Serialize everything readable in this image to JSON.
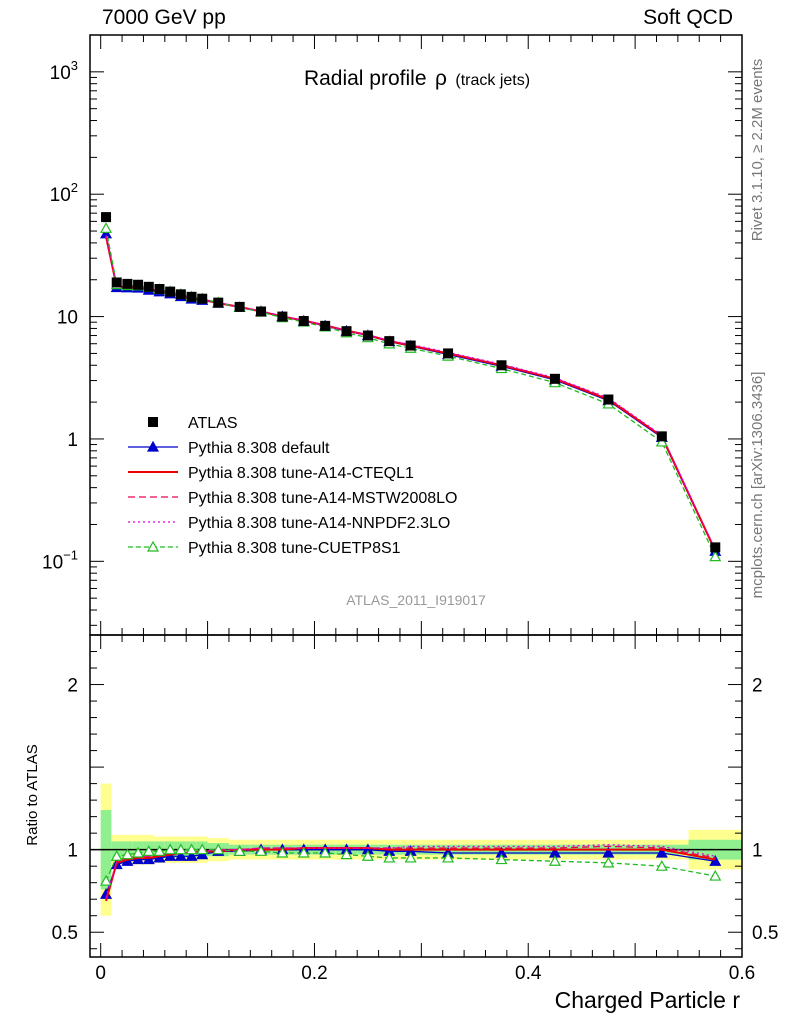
{
  "header": {
    "left": "7000 GeV pp",
    "right": "Soft QCD"
  },
  "side_labels": {
    "rivet": "Rivet 3.1.10, ≥ 2.2M events",
    "mcplots": "mcplots.cern.ch [arXiv:1306.3436]"
  },
  "colors": {
    "atlas": "#000000",
    "default": "#0000cc",
    "cteql1": "#ee0000",
    "mstw": "#ee0055",
    "nnpdf": "#dd00dd",
    "cuetp8s1": "#22bb22",
    "band_inner": "#90f090",
    "band_outer": "#ffff90"
  },
  "chart_data": {
    "type": "line",
    "title": "Radial profile",
    "title_symbol": "ρ",
    "title_suffix": "(track jets)",
    "analysis_label": "ATLAS_2011_I919017",
    "xlabel": "Charged Particle r",
    "ylabel_ratio": "Ratio to ATLAS",
    "xlim": [
      -0.01,
      0.6
    ],
    "ylim_main": [
      0.025,
      2000
    ],
    "ylog_main": true,
    "ylim_ratio": [
      0.35,
      2.3
    ],
    "x_ticks": [
      {
        "v": 0,
        "label": "0"
      },
      {
        "v": 0.2,
        "label": "0.2"
      },
      {
        "v": 0.4,
        "label": "0.4"
      },
      {
        "v": 0.6,
        "label": "0.6"
      }
    ],
    "main_ticks": [
      {
        "v": 1000,
        "base": "10",
        "exp": "3"
      },
      {
        "v": 100,
        "base": "10",
        "exp": "2"
      },
      {
        "v": 10,
        "base": "10",
        "exp": ""
      },
      {
        "v": 1,
        "base": "1",
        "exp": ""
      },
      {
        "v": 0.1,
        "base": "10",
        "exp": "−1"
      }
    ],
    "ratio_ticks": [
      {
        "v": 0.5,
        "label": "0.5"
      },
      {
        "v": 1,
        "label": "1"
      },
      {
        "v": 2,
        "label": "2"
      }
    ],
    "legend_position": "lower-left",
    "x": [
      0.005,
      0.015,
      0.025,
      0.035,
      0.045,
      0.055,
      0.065,
      0.075,
      0.085,
      0.095,
      0.11,
      0.13,
      0.15,
      0.17,
      0.19,
      0.21,
      0.23,
      0.25,
      0.27,
      0.29,
      0.325,
      0.375,
      0.425,
      0.475,
      0.525,
      0.575
    ],
    "band_edges": [
      0,
      0.01,
      0.02,
      0.03,
      0.04,
      0.05,
      0.06,
      0.07,
      0.08,
      0.09,
      0.1,
      0.12,
      0.14,
      0.16,
      0.18,
      0.2,
      0.22,
      0.24,
      0.26,
      0.28,
      0.3,
      0.35,
      0.4,
      0.45,
      0.5,
      0.55,
      0.6
    ],
    "band_inner": [
      0.24,
      0.05,
      0.05,
      0.05,
      0.05,
      0.05,
      0.05,
      0.05,
      0.05,
      0.05,
      0.04,
      0.03,
      0.03,
      0.03,
      0.03,
      0.03,
      0.03,
      0.03,
      0.03,
      0.03,
      0.03,
      0.03,
      0.03,
      0.03,
      0.03,
      0.06
    ],
    "band_outer": [
      0.4,
      0.09,
      0.09,
      0.09,
      0.09,
      0.08,
      0.08,
      0.08,
      0.08,
      0.08,
      0.07,
      0.06,
      0.06,
      0.06,
      0.06,
      0.06,
      0.06,
      0.06,
      0.06,
      0.06,
      0.06,
      0.06,
      0.06,
      0.06,
      0.06,
      0.12
    ],
    "atlas": [
      65,
      19,
      18.5,
      18.2,
      17.5,
      16.8,
      16,
      15.2,
      14.5,
      14,
      13,
      12,
      11,
      10,
      9.2,
      8.4,
      7.6,
      7,
      6.3,
      5.8,
      5,
      4,
      3.1,
      2.1,
      1.05,
      0.13
    ],
    "series": [
      {
        "name": "Pythia 8.308 default",
        "key": "default",
        "marker": "triangle-filled",
        "dash": "",
        "ratio": [
          0.73,
          0.91,
          0.93,
          0.94,
          0.94,
          0.95,
          0.96,
          0.96,
          0.96,
          0.97,
          0.99,
          0.99,
          1.0,
          1.0,
          1.0,
          1.0,
          1.0,
          1.0,
          0.99,
          0.99,
          0.98,
          0.98,
          0.98,
          0.98,
          0.98,
          0.93
        ]
      },
      {
        "name": "Pythia 8.308 tune-A14-CTEQL1",
        "key": "cteql1",
        "marker": "none",
        "dash": "",
        "ratio": [
          0.69,
          0.92,
          0.94,
          0.95,
          0.95,
          0.96,
          0.97,
          0.98,
          0.98,
          0.99,
          0.99,
          1.0,
          1.0,
          1.0,
          1.01,
          1.01,
          1.01,
          1.01,
          1.0,
          1.0,
          1.0,
          1.0,
          1.0,
          1.0,
          1.0,
          0.94
        ]
      },
      {
        "name": "Pythia 8.308 tune-A14-MSTW2008LO",
        "key": "mstw",
        "marker": "none",
        "dash": "7,4",
        "ratio": [
          0.7,
          0.93,
          0.95,
          0.96,
          0.96,
          0.97,
          0.98,
          0.98,
          0.99,
          0.99,
          1.0,
          1.0,
          1.01,
          1.01,
          1.01,
          1.01,
          1.01,
          1.01,
          1.01,
          1.01,
          1.01,
          1.01,
          1.01,
          1.02,
          1.01,
          0.95
        ]
      },
      {
        "name": "Pythia 8.308 tune-A14-NNPDF2.3LO",
        "key": "nnpdf",
        "marker": "none",
        "dash": "2,3",
        "ratio": [
          0.71,
          0.93,
          0.95,
          0.96,
          0.96,
          0.97,
          0.98,
          0.98,
          0.99,
          0.99,
          1.0,
          1.0,
          1.01,
          1.01,
          1.01,
          1.01,
          1.01,
          1.01,
          1.01,
          1.02,
          1.02,
          1.02,
          1.02,
          1.03,
          1.02,
          0.96
        ]
      },
      {
        "name": "Pythia 8.308 tune-CUETP8S1",
        "key": "cuetp8s1",
        "marker": "triangle-open",
        "dash": "5,3",
        "ratio": [
          0.81,
          0.96,
          0.97,
          0.98,
          0.99,
          0.99,
          1.0,
          1.0,
          1.0,
          1.0,
          1.0,
          0.99,
          0.99,
          0.98,
          0.98,
          0.98,
          0.97,
          0.96,
          0.95,
          0.95,
          0.95,
          0.94,
          0.93,
          0.92,
          0.9,
          0.84
        ]
      }
    ],
    "atlas_legend": "ATLAS"
  }
}
